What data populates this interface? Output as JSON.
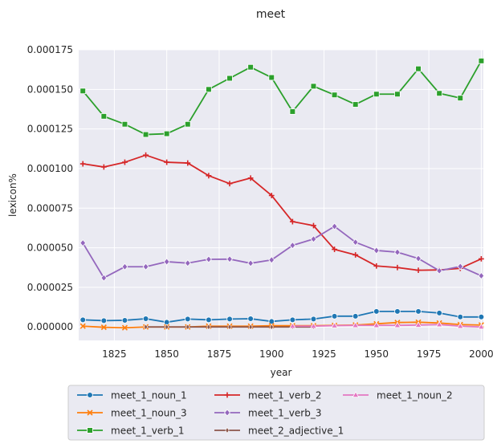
{
  "chart_data": {
    "type": "line",
    "title": "meet",
    "xlabel": "year",
    "ylabel": "lexicon%",
    "xlim": [
      1808,
      2001
    ],
    "ylim": [
      -8.5e-06,
      0.000175
    ],
    "xticks": [
      1825,
      1850,
      1875,
      1900,
      1925,
      1950,
      1975,
      2000
    ],
    "yticks": [
      0.0,
      2.5e-05,
      5e-05,
      7.5e-05,
      0.0001,
      0.000125,
      0.00015,
      0.000175
    ],
    "ytick_labels": [
      "0.000000",
      "0.000025",
      "0.000050",
      "0.000075",
      "0.000100",
      "0.000125",
      "0.000150",
      "0.000175"
    ],
    "grid": true,
    "legend_position": "bottom",
    "legend_columns": 3,
    "x": [
      1810,
      1820,
      1830,
      1840,
      1850,
      1860,
      1870,
      1880,
      1890,
      1900,
      1910,
      1920,
      1930,
      1940,
      1950,
      1960,
      1970,
      1980,
      1990,
      2000
    ],
    "series": [
      {
        "name": "meet_1_noun_1",
        "color": "#1f77b4",
        "marker": "circle",
        "values": [
          4.5e-06,
          4e-06,
          4.2e-06,
          5.2e-06,
          3e-06,
          5e-06,
          4.5e-06,
          5e-06,
          5.2e-06,
          3.5e-06,
          4.5e-06,
          5e-06,
          6.8e-06,
          6.8e-06,
          9.8e-06,
          9.8e-06,
          9.8e-06,
          8.8e-06,
          6.3e-06,
          6.3e-06
        ]
      },
      {
        "name": "meet_1_noun_3",
        "color": "#ff7f0e",
        "marker": "x",
        "values": [
          5e-07,
          -2e-07,
          -5e-07,
          0.0,
          0.0,
          0.0,
          5e-07,
          5e-07,
          5e-07,
          8e-07,
          8e-07,
          8e-07,
          1e-06,
          1.2e-06,
          2e-06,
          2.8e-06,
          3e-06,
          2.5e-06,
          1.5e-06,
          1.2e-06
        ]
      },
      {
        "name": "meet_1_verb_1",
        "color": "#2ca02c",
        "marker": "square",
        "values": [
          0.000149,
          0.000133,
          0.000128,
          0.0001215,
          0.000122,
          0.000128,
          0.00015,
          0.000157,
          0.000164,
          0.0001575,
          0.000136,
          0.000152,
          0.0001465,
          0.0001405,
          0.000147,
          0.000147,
          0.000163,
          0.0001475,
          0.0001445,
          0.000168
        ]
      },
      {
        "name": "meet_1_verb_2",
        "color": "#d62728",
        "marker": "plus",
        "values": [
          0.000103,
          0.000101,
          0.000104,
          0.0001085,
          0.000104,
          0.0001035,
          9.55e-05,
          9.05e-05,
          9.4e-05,
          8.3e-05,
          6.65e-05,
          6.4e-05,
          4.9e-05,
          4.55e-05,
          3.85e-05,
          3.75e-05,
          3.58e-05,
          3.6e-05,
          3.7e-05,
          4.3e-05
        ]
      },
      {
        "name": "meet_1_verb_3",
        "color": "#9467bd",
        "marker": "diamond",
        "values": [
          5.3e-05,
          3.1e-05,
          3.8e-05,
          3.8e-05,
          4.12e-05,
          4.03e-05,
          4.27e-05,
          4.28e-05,
          4.02e-05,
          4.23e-05,
          5.15e-05,
          5.55e-05,
          6.35e-05,
          5.35e-05,
          4.83e-05,
          4.72e-05,
          4.32e-05,
          3.55e-05,
          3.82e-05,
          3.23e-05
        ]
      },
      {
        "name": "meet_2_adjective_1",
        "color": "#8c564b",
        "marker": "thin-diamond",
        "values": [
          null,
          null,
          null,
          0.0,
          0.0,
          0.0,
          0.0,
          0.0,
          0.0,
          0.0,
          0.0,
          0.0,
          null,
          null,
          null,
          null,
          null,
          null,
          null,
          null
        ]
      },
      {
        "name": "meet_1_noun_2",
        "color": "#e377c2",
        "marker": "triangle",
        "values": [
          null,
          null,
          null,
          null,
          null,
          null,
          null,
          null,
          null,
          null,
          5e-07,
          5e-07,
          8e-07,
          1e-06,
          1e-06,
          1e-06,
          1.2e-06,
          1.5e-06,
          5e-07,
          0.0
        ]
      }
    ]
  }
}
